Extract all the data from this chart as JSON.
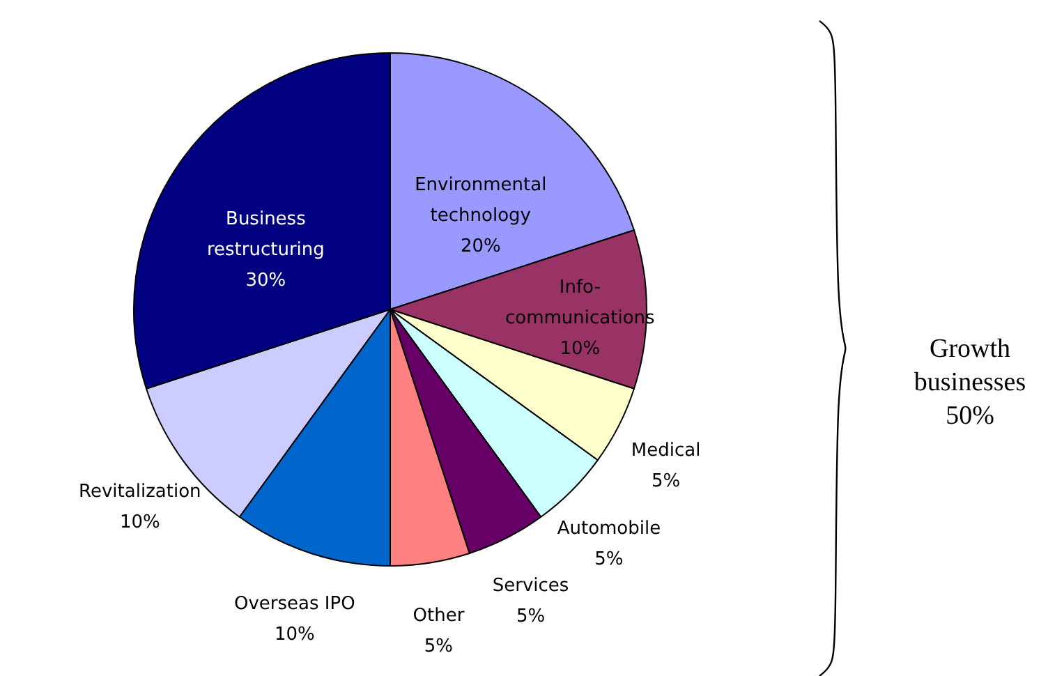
{
  "chart_data": {
    "type": "pie",
    "categories": [
      "Environmental technology",
      "Info-communications",
      "Medical",
      "Automobile",
      "Services",
      "Other",
      "Overseas IPO",
      "Revitalization",
      "Business restructuring"
    ],
    "values": [
      20,
      10,
      5,
      5,
      5,
      5,
      10,
      10,
      30
    ],
    "value_labels": [
      "20%",
      "10%",
      "5%",
      "5%",
      "5%",
      "5%",
      "10%",
      "10%",
      "30%"
    ],
    "colors": [
      "#9999ff",
      "#993366",
      "#ffffcc",
      "#ccffff",
      "#660066",
      "#ff8080",
      "#0066cc",
      "#ccccff",
      "#000080"
    ],
    "annotations": [
      "Growth businesses 50%"
    ]
  }
}
